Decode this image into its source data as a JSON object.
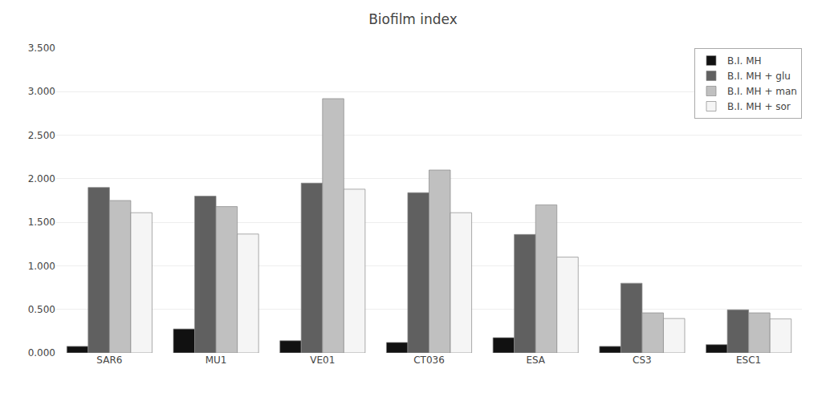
{
  "chart_data": {
    "type": "bar",
    "title": "Biofilm index",
    "categories": [
      "SAR6",
      "MU1",
      "VE01",
      "CT036",
      "ESA",
      "CS3",
      "ESC1"
    ],
    "series": [
      {
        "name": "B.I. MH",
        "color": "#111111",
        "values": [
          0.075,
          0.275,
          0.14,
          0.12,
          0.175,
          0.075,
          0.095
        ]
      },
      {
        "name": "B.I. MH + glu",
        "color": "#606060",
        "values": [
          1.9,
          1.8,
          1.95,
          1.84,
          1.36,
          0.8,
          0.495
        ]
      },
      {
        "name": "B.I. MH + man",
        "color": "#c0c0c0",
        "values": [
          1.75,
          1.68,
          2.92,
          2.1,
          1.7,
          0.46,
          0.46
        ]
      },
      {
        "name": "B.I. MH + sor",
        "color": "#f5f5f5",
        "values": [
          1.61,
          1.365,
          1.88,
          1.61,
          1.1,
          0.395,
          0.39
        ]
      }
    ],
    "ylim": [
      0,
      3.5
    ],
    "yticks": [
      {
        "value": 0.0,
        "label": "0.000"
      },
      {
        "value": 0.5,
        "label": "0.500"
      },
      {
        "value": 1.0,
        "label": "1.000"
      },
      {
        "value": 1.5,
        "label": "1.500"
      },
      {
        "value": 2.0,
        "label": "2.000"
      },
      {
        "value": 2.5,
        "label": "2.500"
      },
      {
        "value": 3.0,
        "label": "3.000"
      },
      {
        "value": 3.5,
        "label": "3.500"
      }
    ],
    "grid": true,
    "legend": "upper right"
  }
}
